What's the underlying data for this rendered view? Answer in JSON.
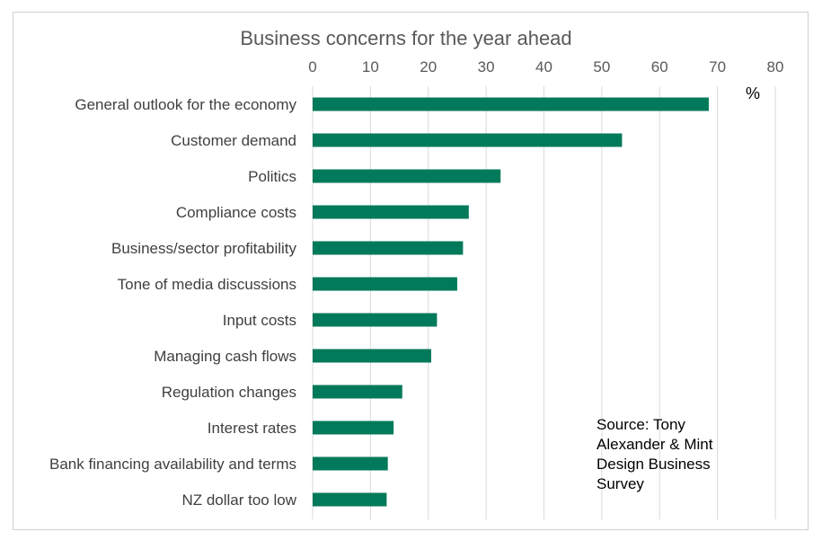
{
  "chart_data": {
    "type": "bar",
    "orientation": "horizontal",
    "title": "Business concerns for the year ahead",
    "unit_label": "%",
    "categories": [
      "General outlook for the economy",
      "Customer demand",
      "Politics",
      "Compliance costs",
      "Business/sector profitability",
      "Tone of media discussions",
      "Input costs",
      "Managing cash flows",
      "Regulation changes",
      "Interest rates",
      "Bank financing availability and terms",
      "NZ dollar too low"
    ],
    "values": [
      68.5,
      53.5,
      32.5,
      27,
      26,
      25,
      21.5,
      20.5,
      15.5,
      14,
      13,
      12.8
    ],
    "xlim": [
      0,
      80
    ],
    "xticks": [
      0,
      10,
      20,
      30,
      40,
      50,
      60,
      70,
      80
    ],
    "axis_position": "top",
    "grid": true,
    "bar_color": "#007a5a",
    "annotation": [
      "Source: Tony",
      "Alexander  & Mint",
      "Design Business",
      "Survey"
    ]
  }
}
